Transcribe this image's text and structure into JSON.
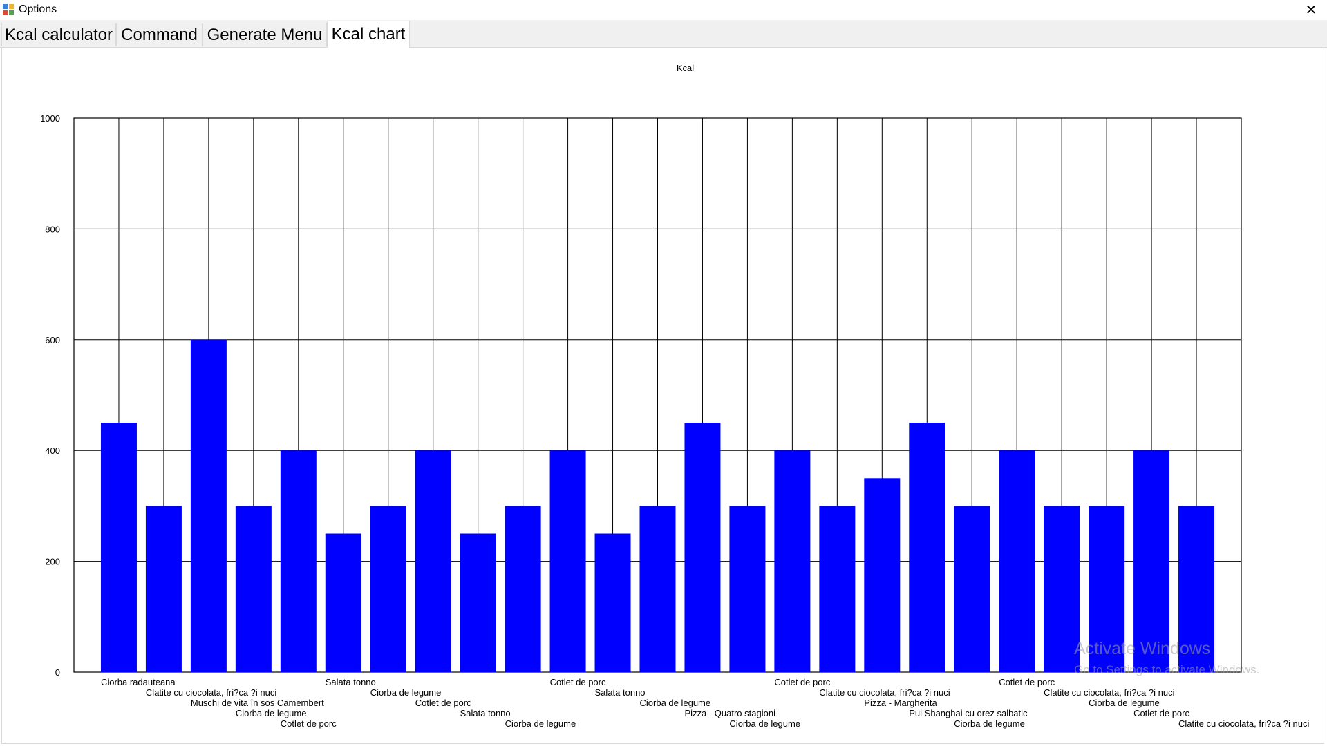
{
  "window": {
    "title": "Options",
    "icon": "app-window-icon",
    "close_glyph": "✕"
  },
  "tabs": [
    {
      "label": "Kcal calculator",
      "active": false
    },
    {
      "label": "Command",
      "active": false
    },
    {
      "label": "Generate Menu",
      "active": false
    },
    {
      "label": "Kcal chart",
      "active": true
    }
  ],
  "watermark": {
    "title": "Activate Windows",
    "subtitle": "Go to Settings to activate Windows."
  },
  "colors": {
    "bar": "#0000ff",
    "grid": "#000000"
  },
  "chart_data": {
    "type": "bar",
    "title": "Kcal",
    "xlabel": "",
    "ylabel": "",
    "ylim": [
      0,
      1000
    ],
    "yticks": [
      0,
      200,
      400,
      600,
      800,
      1000
    ],
    "grid": true,
    "categories": [
      "Ciorba radauteana",
      "Clatite cu ciocolata, fri?ca ?i nuci",
      "Muschi de vita în sos Camembert",
      "Ciorba de legume",
      "Cotlet de porc",
      "Salata tonno",
      "Ciorba de legume",
      "Cotlet de porc",
      "Salata tonno",
      "Ciorba de legume",
      "Cotlet de porc",
      "Salata tonno",
      "Ciorba de legume",
      "Pizza - Quatro stagioni",
      "Ciorba de legume",
      "Cotlet de porc",
      "Clatite cu ciocolata, fri?ca ?i nuci",
      "Pizza - Margherita",
      "Pui Shanghai cu orez salbatic",
      "Ciorba de legume",
      "Cotlet de porc",
      "Clatite cu ciocolata, fri?ca ?i nuci",
      "Ciorba de legume",
      "Cotlet de porc",
      "Clatite cu ciocolata, fri?ca ?i nuci"
    ],
    "values": [
      450,
      300,
      600,
      300,
      400,
      250,
      300,
      400,
      250,
      300,
      400,
      250,
      300,
      450,
      300,
      400,
      300,
      350,
      450,
      300,
      400,
      300,
      300,
      400,
      300
    ]
  }
}
